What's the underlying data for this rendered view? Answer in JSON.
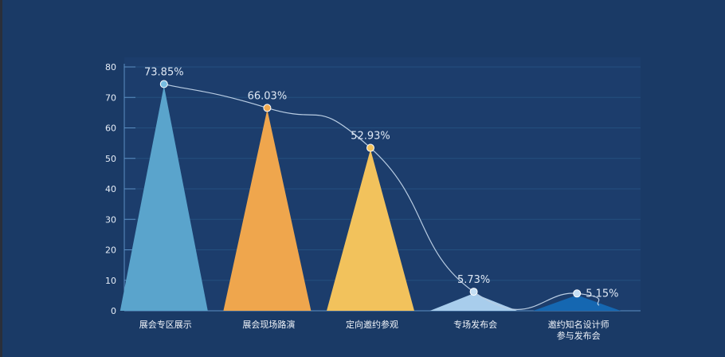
{
  "chart_data": {
    "type": "bar",
    "shape": "triangle",
    "categories": [
      "展会专区展示",
      "展会现场路演",
      "定向邀约参观",
      "专场发布会",
      "邀约知名设计师参与发布会"
    ],
    "category_lines": [
      [
        "展会专区展示"
      ],
      [
        "展会现场路演"
      ],
      [
        "定向邀约参观"
      ],
      [
        "专场发布会"
      ],
      [
        "邀约知名设计师",
        "参与发布会"
      ]
    ],
    "values": [
      73.85,
      66.03,
      52.93,
      5.73,
      5.15
    ],
    "data_labels": [
      "73.85%",
      "66.03%",
      "52.93%",
      "5.73%",
      "5.15%"
    ],
    "bar_colors": [
      "#5aa4cc",
      "#efa64d",
      "#f2c25c",
      "#a8cdec",
      "#1567b1"
    ],
    "marker_colors": [
      "#78bce0",
      "#f0a84e",
      "#f2c25c",
      "#c5dff4",
      "#c5dff4"
    ],
    "ylim": [
      0,
      80
    ],
    "yticks": [
      0,
      10,
      20,
      30,
      40,
      50,
      60,
      70,
      80
    ],
    "grid": true,
    "title": "",
    "xlabel": "",
    "ylabel": ""
  }
}
